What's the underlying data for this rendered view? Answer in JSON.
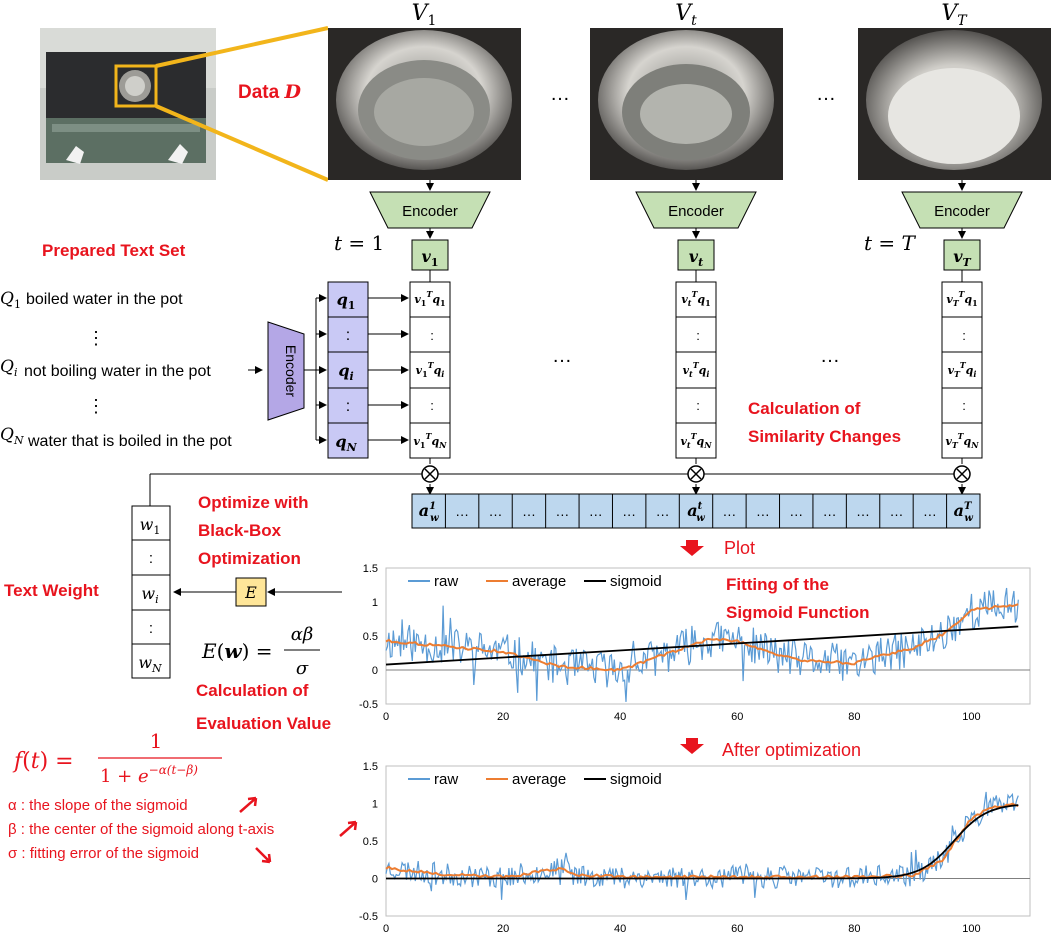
{
  "data_label": "Data D",
  "frames": {
    "first": "V_1",
    "mid": "V_t",
    "last": "V_T"
  },
  "ellipsis": "…",
  "encoder_label": "Encoder",
  "vectors": {
    "first": "v_1",
    "mid": "v_t",
    "last": "v_T"
  },
  "time_labels": {
    "first": "t = 1",
    "last": "t = T"
  },
  "prepared_text_title": "Prepared Text Set",
  "text_set": [
    {
      "symbol": "Q_1",
      "text": "boiled water in the pot"
    },
    {
      "symbol": "Q_i",
      "text": "not boiling water in the pot"
    },
    {
      "symbol": "Q_N",
      "text": "water that is boiled in the pot"
    }
  ],
  "query_vectors": [
    "q_1",
    ":",
    "q_i",
    ":",
    "q_N"
  ],
  "similarity_cells": {
    "first": [
      "v_1^T q_1",
      ":",
      "v_1^T q_i",
      ":",
      "v_1^T q_N"
    ],
    "mid": [
      "v_t^T q_1",
      ":",
      "v_t^T q_i",
      ":",
      "v_t^T q_N"
    ],
    "last": [
      "v_T^T q_1",
      ":",
      "v_T^T q_i",
      ":",
      "v_T^T q_N"
    ]
  },
  "similarity_title": [
    "Calculation of",
    "Similarity Changes"
  ],
  "weighted_seq": [
    "a_w^1",
    "…",
    "…",
    "…",
    "…",
    "…",
    "…",
    "…",
    "a_w^t",
    "…",
    "…",
    "…",
    "…",
    "…",
    "…",
    "…",
    "a_w^T"
  ],
  "weights": [
    "w_1",
    ":",
    "w_i",
    ":",
    "w_N"
  ],
  "text_weight_title": "Text Weight",
  "optimize_title": [
    "Optimize with",
    "Black-Box",
    "Optimization"
  ],
  "e_box": "E",
  "evaluation_formula": "E(w) = αβ / σ",
  "evaluation_title": [
    "Calculation of",
    "Evaluation Value"
  ],
  "sigmoid_formula": "f(t) = 1 / (1 + e^{−α(t−β)})",
  "legend_notes": [
    "α : the slope of the sigmoid",
    "β : the center of the sigmoid along t-axis",
    "σ : fitting error of the sigmoid"
  ],
  "plot_label": "Plot",
  "fitting_title": [
    "Fitting of the",
    "Sigmoid Function"
  ],
  "after_label": "After optimization",
  "colors": {
    "accent_red": "#e8141e",
    "raw": "#5b9bd5",
    "average": "#ed7d31",
    "sigmoid": "#000000",
    "encoder_fill": "#c5e0b4",
    "query_fill": "#c9c9f5",
    "encoder_text_fill": "#b4a7e6",
    "seq_fill": "#bdd7ee"
  },
  "chart_data": [
    {
      "type": "line",
      "series": [
        {
          "name": "raw"
        },
        {
          "name": "average",
          "values_at": [
            [
              0,
              0.43
            ],
            [
              10,
              0.35
            ],
            [
              20,
              0.27
            ],
            [
              25,
              0.15
            ],
            [
              30,
              0.05
            ],
            [
              40,
              0.0
            ],
            [
              45,
              0.15
            ],
            [
              55,
              0.45
            ],
            [
              60,
              0.43
            ],
            [
              65,
              0.28
            ],
            [
              70,
              0.15
            ],
            [
              80,
              0.1
            ],
            [
              85,
              0.22
            ],
            [
              90,
              0.32
            ],
            [
              95,
              0.52
            ],
            [
              100,
              0.88
            ],
            [
              108,
              0.97
            ]
          ]
        },
        {
          "name": "sigmoid",
          "values_at": [
            [
              0,
              0.08
            ],
            [
              108,
              0.64
            ]
          ]
        }
      ],
      "xlim": [
        0,
        110
      ],
      "ylim": [
        -0.5,
        1.5
      ],
      "xticks": [
        0,
        20,
        40,
        60,
        80,
        100
      ],
      "yticks": [
        -0.5,
        0,
        0.5,
        1,
        1.5
      ],
      "ytick_labels": [
        "-0.5",
        "0",
        "0.5",
        "1",
        "1.5"
      ]
    },
    {
      "type": "line",
      "series": [
        {
          "name": "raw"
        },
        {
          "name": "average",
          "values_at": [
            [
              0,
              0.14
            ],
            [
              10,
              0.05
            ],
            [
              20,
              0.02
            ],
            [
              30,
              0.13
            ],
            [
              33,
              0.05
            ],
            [
              40,
              0.02
            ],
            [
              60,
              0.02
            ],
            [
              80,
              0.02
            ],
            [
              90,
              0.04
            ],
            [
              95,
              0.25
            ],
            [
              100,
              0.8
            ],
            [
              104,
              0.97
            ],
            [
              108,
              0.98
            ]
          ]
        },
        {
          "name": "sigmoid",
          "sigmoid": {
            "alpha": 0.35,
            "beta": 97
          }
        }
      ],
      "xlim": [
        0,
        110
      ],
      "ylim": [
        -0.5,
        1.5
      ],
      "xticks": [
        0,
        20,
        40,
        60,
        80,
        100
      ],
      "yticks": [
        -0.5,
        0,
        0.5,
        1,
        1.5
      ],
      "ytick_labels": [
        "-0.5",
        "0",
        "0.5",
        "1",
        "1.5"
      ]
    }
  ]
}
